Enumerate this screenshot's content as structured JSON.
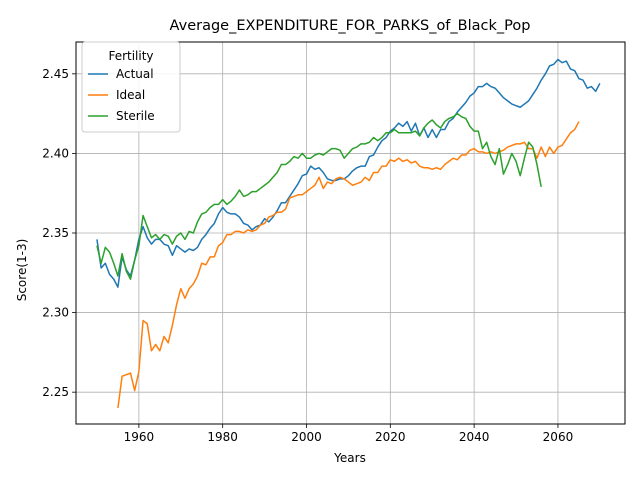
{
  "chart_data": {
    "type": "line",
    "title": "Average_EXPENDITURE_FOR_PARKS_of_Black_Pop",
    "xlabel": "Years",
    "ylabel": "Score(1-3)",
    "xlim": [
      1945,
      2076
    ],
    "ylim": [
      2.23,
      2.47
    ],
    "xticks": [
      1960,
      1980,
      2000,
      2020,
      2040,
      2060
    ],
    "yticks": [
      2.25,
      2.3,
      2.35,
      2.4,
      2.45
    ],
    "ytick_labels": [
      "2.25",
      "2.30",
      "2.35",
      "2.40",
      "2.45"
    ],
    "grid": true,
    "legend": {
      "title": "Fertility",
      "position": "top-left"
    },
    "series": [
      {
        "name": "Actual",
        "color": "#1f77b4",
        "start_year": 1950,
        "values": [
          2.346,
          2.328,
          2.331,
          2.324,
          2.321,
          2.316,
          2.335,
          2.327,
          2.323,
          2.333,
          2.346,
          2.354,
          2.347,
          2.343,
          2.346,
          2.346,
          2.343,
          2.342,
          2.336,
          2.342,
          2.34,
          2.338,
          2.34,
          2.339,
          2.341,
          2.346,
          2.349,
          2.353,
          2.356,
          2.362,
          2.366,
          2.363,
          2.362,
          2.362,
          2.36,
          2.356,
          2.355,
          2.352,
          2.354,
          2.355,
          2.359,
          2.357,
          2.36,
          2.364,
          2.369,
          2.369,
          2.373,
          2.377,
          2.381,
          2.386,
          2.387,
          2.392,
          2.39,
          2.391,
          2.388,
          2.384,
          2.383,
          2.383,
          2.384,
          2.384,
          2.386,
          2.389,
          2.391,
          2.392,
          2.392,
          2.398,
          2.399,
          2.404,
          2.408,
          2.41,
          2.414,
          2.416,
          2.419,
          2.417,
          2.42,
          2.414,
          2.419,
          2.411,
          2.416,
          2.41,
          2.415,
          2.41,
          2.415,
          2.415,
          2.42,
          2.422,
          2.426,
          2.429,
          2.432,
          2.436,
          2.438,
          2.442,
          2.442,
          2.444,
          2.442,
          2.441,
          2.438,
          2.435,
          2.433,
          2.431,
          2.43,
          2.429,
          2.431,
          2.433,
          2.437,
          2.441,
          2.446,
          2.45,
          2.455,
          2.456,
          2.459,
          2.457,
          2.458,
          2.453,
          2.452,
          2.447,
          2.446,
          2.441,
          2.442,
          2.439,
          2.444
        ]
      },
      {
        "name": "Ideal",
        "color": "#ff7f0e",
        "start_year": 1955,
        "values": [
          2.24,
          2.26,
          2.261,
          2.262,
          2.251,
          2.263,
          2.295,
          2.293,
          2.276,
          2.28,
          2.276,
          2.285,
          2.281,
          2.292,
          2.305,
          2.315,
          2.309,
          2.315,
          2.318,
          2.323,
          2.331,
          2.33,
          2.335,
          2.335,
          2.342,
          2.344,
          2.349,
          2.349,
          2.351,
          2.351,
          2.35,
          2.352,
          2.351,
          2.352,
          2.355,
          2.356,
          2.36,
          2.361,
          2.363,
          2.363,
          2.365,
          2.372,
          2.373,
          2.374,
          2.374,
          2.376,
          2.378,
          2.38,
          2.385,
          2.378,
          2.382,
          2.381,
          2.384,
          2.385,
          2.384,
          2.382,
          2.38,
          2.381,
          2.382,
          2.385,
          2.383,
          2.388,
          2.388,
          2.392,
          2.392,
          2.396,
          2.395,
          2.397,
          2.395,
          2.396,
          2.394,
          2.395,
          2.392,
          2.391,
          2.391,
          2.39,
          2.391,
          2.39,
          2.393,
          2.395,
          2.397,
          2.396,
          2.399,
          2.399,
          2.402,
          2.403,
          2.401,
          2.401,
          2.4,
          2.401,
          2.4,
          2.401,
          2.402,
          2.404,
          2.405,
          2.406,
          2.406,
          2.407,
          2.403,
          2.403,
          2.397,
          2.404,
          2.398,
          2.404,
          2.4,
          2.404,
          2.405,
          2.409,
          2.413,
          2.415,
          2.42
        ]
      },
      {
        "name": "Sterile",
        "color": "#2ca02c",
        "start_year": 1950,
        "values": [
          2.342,
          2.331,
          2.341,
          2.338,
          2.331,
          2.323,
          2.337,
          2.326,
          2.321,
          2.333,
          2.342,
          2.361,
          2.354,
          2.347,
          2.349,
          2.346,
          2.349,
          2.348,
          2.343,
          2.348,
          2.35,
          2.346,
          2.351,
          2.35,
          2.357,
          2.362,
          2.363,
          2.366,
          2.368,
          2.368,
          2.371,
          2.368,
          2.37,
          2.373,
          2.377,
          2.373,
          2.374,
          2.376,
          2.376,
          2.378,
          2.38,
          2.382,
          2.385,
          2.388,
          2.393,
          2.393,
          2.395,
          2.398,
          2.397,
          2.4,
          2.397,
          2.397,
          2.399,
          2.4,
          2.399,
          2.401,
          2.403,
          2.403,
          2.402,
          2.397,
          2.4,
          2.403,
          2.404,
          2.406,
          2.406,
          2.407,
          2.41,
          2.408,
          2.41,
          2.413,
          2.413,
          2.415,
          2.413,
          2.413,
          2.413,
          2.413,
          2.414,
          2.411,
          2.416,
          2.419,
          2.421,
          2.418,
          2.416,
          2.42,
          2.422,
          2.423,
          2.425,
          2.423,
          2.422,
          2.417,
          2.414,
          2.414,
          2.403,
          2.407,
          2.398,
          2.393,
          2.403,
          2.387,
          2.393,
          2.4,
          2.395,
          2.386,
          2.397,
          2.407,
          2.404,
          2.393,
          2.379
        ]
      }
    ]
  }
}
